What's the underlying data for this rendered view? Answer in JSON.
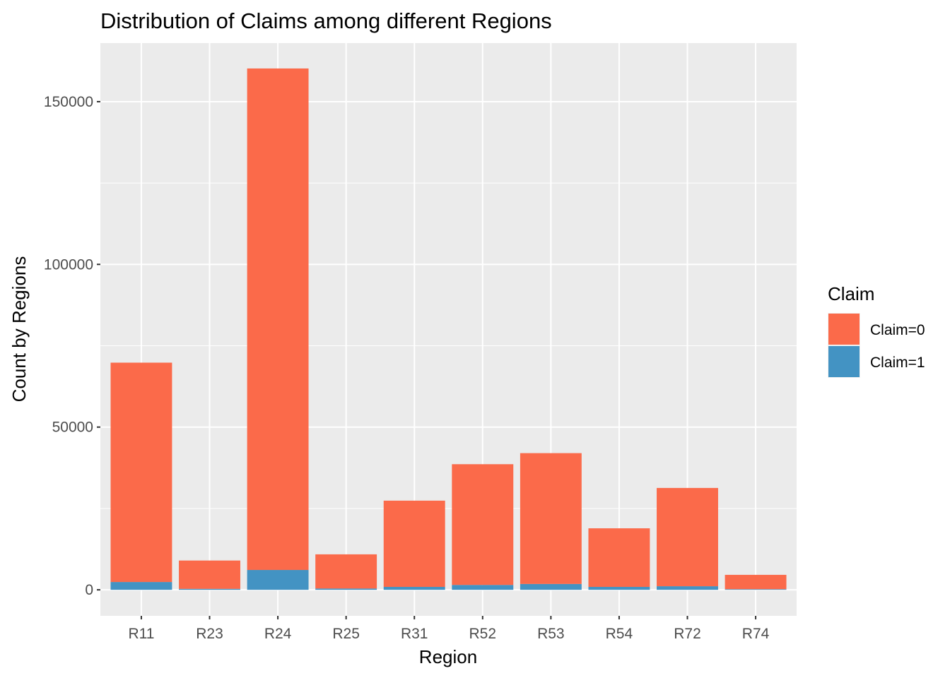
{
  "chart_data": {
    "type": "bar",
    "stacked": true,
    "title": "Distribution of Claims among different Regions",
    "xlabel": "Region",
    "ylabel": "Count by Regions",
    "ylim": [
      -8000,
      168000
    ],
    "yticks": [
      0,
      50000,
      100000,
      150000
    ],
    "ytick_labels": [
      "0",
      "50000",
      "100000",
      "150000"
    ],
    "grid": true,
    "legend_position": "right",
    "legend_title": "Claim",
    "categories": [
      "R11",
      "R23",
      "R24",
      "R25",
      "R31",
      "R52",
      "R53",
      "R54",
      "R72",
      "R74"
    ],
    "series": [
      {
        "name": "Claim=1",
        "color": "#4393c3",
        "values": [
          2400,
          300,
          6100,
          400,
          900,
          1500,
          1800,
          900,
          1100,
          200
        ]
      },
      {
        "name": "Claim=0",
        "color": "#fb6a4a",
        "values": [
          67400,
          8700,
          154100,
          10500,
          26500,
          37100,
          40200,
          18000,
          30200,
          4400
        ]
      }
    ],
    "legend_order": [
      "Claim=0",
      "Claim=1"
    ]
  }
}
